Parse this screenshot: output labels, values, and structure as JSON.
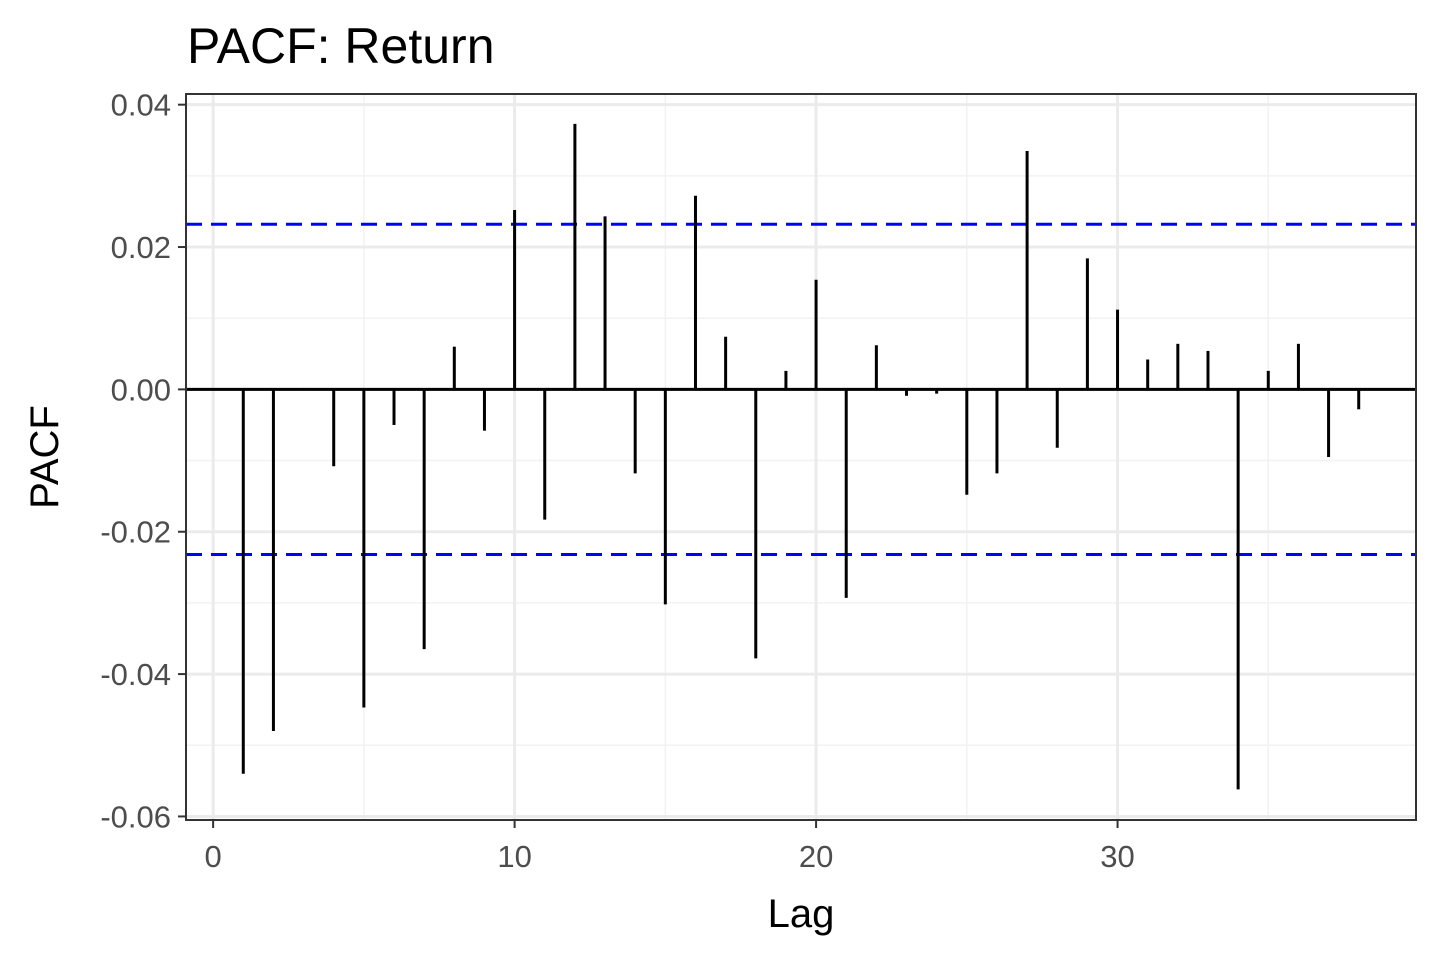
{
  "chart_data": {
    "type": "bar",
    "title": "PACF: Return",
    "xlabel": "Lag",
    "ylabel": "PACF",
    "xlim": [
      -0.9,
      39.9
    ],
    "ylim": [
      -0.0605,
      0.0415
    ],
    "x_ticks": [
      0,
      10,
      20,
      30
    ],
    "x_tick_labels": [
      "0",
      "10",
      "20",
      "30"
    ],
    "y_ticks": [
      0.04,
      0.02,
      0.0,
      -0.02,
      -0.04,
      -0.06
    ],
    "y_tick_labels": [
      "0.04",
      "0.02",
      "0.00",
      "-0.02",
      "-0.04",
      "-0.06"
    ],
    "grid": true,
    "confidence_bounds": [
      0.0232,
      -0.0232
    ],
    "confidence_color": "#0000ff",
    "bar_color": "#000000",
    "lags": [
      1,
      2,
      3,
      4,
      5,
      6,
      7,
      8,
      9,
      10,
      11,
      12,
      13,
      14,
      15,
      16,
      17,
      18,
      19,
      20,
      21,
      22,
      23,
      24,
      25,
      26,
      27,
      28,
      29,
      30,
      31,
      32,
      33,
      34,
      35,
      36,
      37,
      38
    ],
    "values": [
      -0.054,
      -0.048,
      0.0002,
      -0.0108,
      -0.0447,
      -0.005,
      -0.0365,
      0.006,
      -0.0058,
      0.0252,
      -0.0183,
      0.0373,
      0.0243,
      -0.0118,
      -0.0302,
      0.0272,
      0.0074,
      -0.0378,
      0.0026,
      0.0154,
      -0.0293,
      0.0062,
      -0.0009,
      -0.0006,
      -0.0148,
      -0.0118,
      0.0335,
      -0.0082,
      0.0184,
      0.0112,
      0.0042,
      0.0064,
      0.0054,
      -0.0562,
      0.0026,
      0.0064,
      -0.0095,
      -0.0028
    ]
  }
}
